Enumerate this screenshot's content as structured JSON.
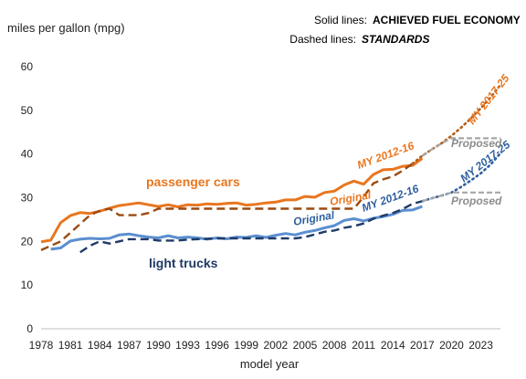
{
  "chart_data": {
    "type": "line",
    "ylabel": "miles per gallon (mpg)",
    "xlabel": "model year",
    "xlim": [
      1978,
      2025
    ],
    "ylim": [
      0,
      60
    ],
    "x_ticks": [
      1978,
      1981,
      1984,
      1987,
      1990,
      1993,
      1996,
      1999,
      2002,
      2005,
      2008,
      2011,
      2014,
      2017,
      2020,
      2023
    ],
    "y_ticks": [
      0,
      10,
      20,
      30,
      40,
      50,
      60
    ],
    "grid": false,
    "legend": {
      "solid_key": "Solid lines:",
      "solid_value": "ACHIEVED FUEL ECONOMY",
      "dashed_key": "Dashed lines:",
      "dashed_value": "STANDARDS"
    },
    "colors": {
      "cars_achieved": "#e8761f",
      "cars_standard": "#9b4a10",
      "trucks_achieved": "#5b8fd0",
      "trucks_standard": "#1f3a66",
      "cars_my2017": "#b35e18",
      "trucks_my2017": "#2f5f9e",
      "proposed": "#a6a6a6"
    },
    "series": [
      {
        "key": "cars_achieved",
        "style": "solid",
        "points": [
          [
            1978,
            19.9
          ],
          [
            1979,
            20.3
          ],
          [
            1980,
            24.3
          ],
          [
            1981,
            25.9
          ],
          [
            1982,
            26.6
          ],
          [
            1983,
            26.4
          ],
          [
            1984,
            26.9
          ],
          [
            1985,
            27.6
          ],
          [
            1986,
            28.2
          ],
          [
            1987,
            28.5
          ],
          [
            1988,
            28.8
          ],
          [
            1989,
            28.4
          ],
          [
            1990,
            28.0
          ],
          [
            1991,
            28.4
          ],
          [
            1992,
            27.9
          ],
          [
            1993,
            28.4
          ],
          [
            1994,
            28.3
          ],
          [
            1995,
            28.6
          ],
          [
            1996,
            28.5
          ],
          [
            1997,
            28.7
          ],
          [
            1998,
            28.8
          ],
          [
            1999,
            28.3
          ],
          [
            2000,
            28.5
          ],
          [
            2001,
            28.8
          ],
          [
            2002,
            29.0
          ],
          [
            2003,
            29.5
          ],
          [
            2004,
            29.5
          ],
          [
            2005,
            30.3
          ],
          [
            2006,
            30.1
          ],
          [
            2007,
            31.2
          ],
          [
            2008,
            31.5
          ],
          [
            2009,
            32.9
          ],
          [
            2010,
            33.8
          ],
          [
            2011,
            33.1
          ],
          [
            2012,
            35.3
          ],
          [
            2013,
            36.4
          ],
          [
            2014,
            36.5
          ],
          [
            2015,
            37.2
          ],
          [
            2016,
            37.4
          ],
          [
            2017,
            39.0
          ]
        ]
      },
      {
        "key": "cars_standard",
        "style": "dash",
        "points": [
          [
            1978,
            18.0
          ],
          [
            1979,
            19.0
          ],
          [
            1980,
            20.0
          ],
          [
            1981,
            22.0
          ],
          [
            1982,
            24.0
          ],
          [
            1983,
            26.0
          ],
          [
            1984,
            27.0
          ],
          [
            1985,
            27.5
          ],
          [
            1986,
            26.0
          ],
          [
            1987,
            26.0
          ],
          [
            1988,
            26.0
          ],
          [
            1989,
            26.5
          ],
          [
            1990,
            27.5
          ],
          [
            1991,
            27.5
          ],
          [
            2010,
            27.5
          ],
          [
            2011,
            30.2
          ],
          [
            2012,
            33.3
          ],
          [
            2013,
            34.2
          ],
          [
            2014,
            34.9
          ],
          [
            2015,
            36.2
          ],
          [
            2016,
            37.8
          ]
        ]
      },
      {
        "key": "cars_my2017",
        "style": "dot",
        "points": [
          [
            2016,
            37.8
          ],
          [
            2017,
            39.6
          ],
          [
            2018,
            41.1
          ],
          [
            2019,
            42.5
          ],
          [
            2020,
            44.2
          ],
          [
            2021,
            46.1
          ],
          [
            2022,
            48.2
          ],
          [
            2023,
            50.5
          ],
          [
            2024,
            53.0
          ],
          [
            2025,
            55.8
          ]
        ]
      },
      {
        "key": "cars_proposed",
        "style": "proposed",
        "points": [
          [
            2017,
            39.6
          ],
          [
            2018,
            41.1
          ],
          [
            2019,
            42.5
          ],
          [
            2020,
            43.6
          ],
          [
            2021,
            43.6
          ],
          [
            2022,
            43.6
          ],
          [
            2023,
            43.6
          ],
          [
            2024,
            43.6
          ],
          [
            2025,
            43.6
          ]
        ]
      },
      {
        "key": "trucks_achieved",
        "style": "solid",
        "points": [
          [
            1979,
            18.2
          ],
          [
            1980,
            18.5
          ],
          [
            1981,
            20.1
          ],
          [
            1982,
            20.5
          ],
          [
            1983,
            20.7
          ],
          [
            1984,
            20.6
          ],
          [
            1985,
            20.7
          ],
          [
            1986,
            21.5
          ],
          [
            1987,
            21.7
          ],
          [
            1988,
            21.3
          ],
          [
            1989,
            21.0
          ],
          [
            1990,
            20.8
          ],
          [
            1991,
            21.3
          ],
          [
            1992,
            20.8
          ],
          [
            1993,
            21.0
          ],
          [
            1994,
            20.8
          ],
          [
            1995,
            20.5
          ],
          [
            1996,
            20.8
          ],
          [
            1997,
            20.6
          ],
          [
            1998,
            21.0
          ],
          [
            1999,
            20.9
          ],
          [
            2000,
            21.3
          ],
          [
            2001,
            20.9
          ],
          [
            2002,
            21.4
          ],
          [
            2003,
            21.8
          ],
          [
            2004,
            21.5
          ],
          [
            2005,
            22.1
          ],
          [
            2006,
            22.5
          ],
          [
            2007,
            23.1
          ],
          [
            2008,
            23.6
          ],
          [
            2009,
            24.8
          ],
          [
            2010,
            25.2
          ],
          [
            2011,
            24.7
          ],
          [
            2012,
            25.3
          ],
          [
            2013,
            25.7
          ],
          [
            2014,
            26.2
          ],
          [
            2015,
            27.1
          ],
          [
            2016,
            27.2
          ],
          [
            2017,
            28.0
          ]
        ]
      },
      {
        "key": "trucks_standard",
        "style": "dash",
        "points": [
          [
            1982,
            17.5
          ],
          [
            1983,
            19.0
          ],
          [
            1984,
            20.0
          ],
          [
            1985,
            19.5
          ],
          [
            1986,
            20.0
          ],
          [
            1987,
            20.5
          ],
          [
            1988,
            20.5
          ],
          [
            1989,
            20.5
          ],
          [
            1990,
            20.2
          ],
          [
            1991,
            20.2
          ],
          [
            1992,
            20.2
          ],
          [
            1993,
            20.4
          ],
          [
            1994,
            20.5
          ],
          [
            1995,
            20.6
          ],
          [
            1996,
            20.7
          ],
          [
            1997,
            20.7
          ],
          [
            1998,
            20.7
          ],
          [
            1999,
            20.7
          ],
          [
            2000,
            20.7
          ],
          [
            2001,
            20.7
          ],
          [
            2002,
            20.7
          ],
          [
            2003,
            20.7
          ],
          [
            2004,
            20.7
          ],
          [
            2005,
            21.0
          ],
          [
            2006,
            21.6
          ],
          [
            2007,
            22.2
          ],
          [
            2008,
            22.5
          ],
          [
            2009,
            23.1
          ],
          [
            2010,
            23.5
          ],
          [
            2011,
            24.1
          ],
          [
            2012,
            25.2
          ],
          [
            2013,
            25.9
          ],
          [
            2014,
            26.5
          ],
          [
            2015,
            27.4
          ],
          [
            2016,
            28.6
          ],
          [
            2017,
            29.2
          ]
        ]
      },
      {
        "key": "trucks_my2017",
        "style": "dot",
        "points": [
          [
            2017,
            29.2
          ],
          [
            2018,
            29.9
          ],
          [
            2019,
            30.5
          ],
          [
            2020,
            31.2
          ],
          [
            2021,
            32.5
          ],
          [
            2022,
            34.0
          ],
          [
            2023,
            35.6
          ],
          [
            2024,
            37.6
          ],
          [
            2025,
            40.2
          ]
        ]
      },
      {
        "key": "trucks_proposed",
        "style": "proposed",
        "points": [
          [
            2017,
            29.2
          ],
          [
            2018,
            29.9
          ],
          [
            2019,
            30.5
          ],
          [
            2020,
            31.2
          ],
          [
            2021,
            31.2
          ],
          [
            2022,
            31.2
          ],
          [
            2023,
            31.2
          ],
          [
            2024,
            31.2
          ],
          [
            2025,
            31.2
          ]
        ]
      }
    ],
    "annotations": {
      "passenger_cars": "passenger cars",
      "light_trucks": "light trucks",
      "cars_original": "Original",
      "trucks_original": "Original",
      "cars_my2012": "MY 2012-16",
      "trucks_my2012": "MY 2012-16",
      "cars_my2017": "MY 2017-25",
      "trucks_my2017": "MY 2017-25",
      "cars_proposed": "Proposed",
      "trucks_proposed": "Proposed"
    }
  }
}
